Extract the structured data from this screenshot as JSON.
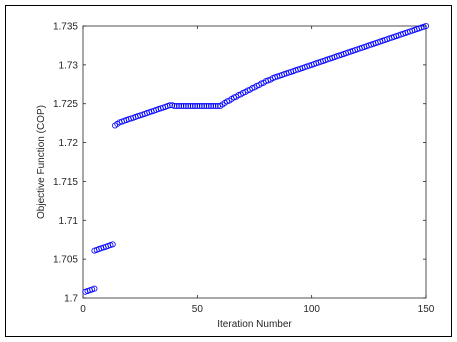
{
  "chart_data": {
    "type": "scatter",
    "title": "",
    "xlabel": "Iteration Number",
    "ylabel": "Objective Function (COP)",
    "xlim": [
      0,
      150
    ],
    "ylim": [
      1.7,
      1.735
    ],
    "x_ticks": [
      "0",
      "50",
      "100",
      "150"
    ],
    "y_ticks": [
      "1.7",
      "1.705",
      "1.71",
      "1.715",
      "1.72",
      "1.725",
      "1.73",
      "1.735"
    ],
    "grid": false,
    "legend": "none",
    "marker": "circle",
    "marker_color": "#0000ff",
    "series": [
      {
        "points": [
          [
            1,
            1.7008
          ],
          [
            2,
            1.7009
          ],
          [
            3,
            1.701
          ],
          [
            4,
            1.7011
          ],
          [
            5,
            1.7012
          ],
          [
            5,
            1.7061
          ],
          [
            6,
            1.7062
          ],
          [
            7,
            1.7063
          ],
          [
            8,
            1.7064
          ],
          [
            9,
            1.7065
          ],
          [
            10,
            1.7066
          ],
          [
            11,
            1.7067
          ],
          [
            12,
            1.7068
          ],
          [
            13,
            1.7069
          ],
          [
            14,
            1.7222
          ],
          [
            15,
            1.7224
          ],
          [
            16,
            1.7226
          ],
          [
            17,
            1.7227
          ],
          [
            18,
            1.7228
          ],
          [
            19,
            1.7229
          ],
          [
            20,
            1.723
          ],
          [
            21,
            1.7231
          ],
          [
            22,
            1.7232
          ],
          [
            23,
            1.7233
          ],
          [
            24,
            1.7234
          ],
          [
            25,
            1.7235
          ],
          [
            26,
            1.7236
          ],
          [
            27,
            1.7237
          ],
          [
            28,
            1.7238
          ],
          [
            29,
            1.7239
          ],
          [
            30,
            1.724
          ],
          [
            31,
            1.7241
          ],
          [
            32,
            1.7242
          ],
          [
            33,
            1.7243
          ],
          [
            34,
            1.7244
          ],
          [
            35,
            1.7245
          ],
          [
            36,
            1.7246
          ],
          [
            37,
            1.7247
          ],
          [
            38,
            1.7248
          ],
          [
            39,
            1.7248
          ],
          [
            40,
            1.7247
          ],
          [
            41,
            1.7247
          ],
          [
            42,
            1.7247
          ],
          [
            43,
            1.7247
          ],
          [
            44,
            1.7247
          ],
          [
            45,
            1.7247
          ],
          [
            46,
            1.7247
          ],
          [
            47,
            1.7247
          ],
          [
            48,
            1.7247
          ],
          [
            49,
            1.7247
          ],
          [
            50,
            1.7247
          ],
          [
            51,
            1.7247
          ],
          [
            52,
            1.7247
          ],
          [
            53,
            1.7247
          ],
          [
            54,
            1.7247
          ],
          [
            55,
            1.7247
          ],
          [
            56,
            1.7247
          ],
          [
            57,
            1.7247
          ],
          [
            58,
            1.7247
          ],
          [
            59,
            1.7247
          ],
          [
            60,
            1.7247
          ],
          [
            61,
            1.7249
          ],
          [
            62,
            1.7251
          ],
          [
            63,
            1.7253
          ],
          [
            64,
            1.7254
          ],
          [
            65,
            1.7256
          ],
          [
            66,
            1.7258
          ],
          [
            67,
            1.7259
          ],
          [
            68,
            1.7261
          ],
          [
            69,
            1.7262
          ],
          [
            70,
            1.7264
          ],
          [
            71,
            1.7265
          ],
          [
            72,
            1.7267
          ],
          [
            73,
            1.7268
          ],
          [
            74,
            1.727
          ],
          [
            75,
            1.7271
          ],
          [
            76,
            1.7273
          ],
          [
            77,
            1.7274
          ],
          [
            78,
            1.7276
          ],
          [
            79,
            1.7277
          ],
          [
            80,
            1.7279
          ],
          [
            81,
            1.728
          ],
          [
            82,
            1.7281
          ],
          [
            83,
            1.7283
          ],
          [
            84,
            1.7284
          ],
          [
            85,
            1.7285
          ],
          [
            86,
            1.7286
          ],
          [
            87,
            1.7287
          ],
          [
            88,
            1.7288
          ],
          [
            89,
            1.7289
          ],
          [
            90,
            1.729
          ],
          [
            91,
            1.7291
          ],
          [
            92,
            1.7292
          ],
          [
            93,
            1.7293
          ],
          [
            94,
            1.7294
          ],
          [
            95,
            1.7295
          ],
          [
            96,
            1.7296
          ],
          [
            97,
            1.7297
          ],
          [
            98,
            1.7298
          ],
          [
            99,
            1.7299
          ],
          [
            100,
            1.73
          ],
          [
            101,
            1.7301
          ],
          [
            102,
            1.7302
          ],
          [
            103,
            1.7303
          ],
          [
            104,
            1.7304
          ],
          [
            105,
            1.7305
          ],
          [
            106,
            1.7306
          ],
          [
            107,
            1.7307
          ],
          [
            108,
            1.7308
          ],
          [
            109,
            1.7309
          ],
          [
            110,
            1.731
          ],
          [
            111,
            1.7311
          ],
          [
            112,
            1.7312
          ],
          [
            113,
            1.7313
          ],
          [
            114,
            1.7314
          ],
          [
            115,
            1.7315
          ],
          [
            116,
            1.7316
          ],
          [
            117,
            1.7317
          ],
          [
            118,
            1.7318
          ],
          [
            119,
            1.7319
          ],
          [
            120,
            1.732
          ],
          [
            121,
            1.7321
          ],
          [
            122,
            1.7322
          ],
          [
            123,
            1.7323
          ],
          [
            124,
            1.7324
          ],
          [
            125,
            1.7325
          ],
          [
            126,
            1.7326
          ],
          [
            127,
            1.7327
          ],
          [
            128,
            1.7328
          ],
          [
            129,
            1.7329
          ],
          [
            130,
            1.733
          ],
          [
            131,
            1.7331
          ],
          [
            132,
            1.7332
          ],
          [
            133,
            1.7333
          ],
          [
            134,
            1.7334
          ],
          [
            135,
            1.7335
          ],
          [
            136,
            1.7336
          ],
          [
            137,
            1.7337
          ],
          [
            138,
            1.7338
          ],
          [
            139,
            1.7339
          ],
          [
            140,
            1.734
          ],
          [
            141,
            1.7341
          ],
          [
            142,
            1.7342
          ],
          [
            143,
            1.7343
          ],
          [
            144,
            1.7344
          ],
          [
            145,
            1.7345
          ],
          [
            146,
            1.7346
          ],
          [
            147,
            1.7347
          ],
          [
            148,
            1.7348
          ],
          [
            149,
            1.7349
          ],
          [
            150,
            1.735
          ]
        ]
      }
    ]
  }
}
